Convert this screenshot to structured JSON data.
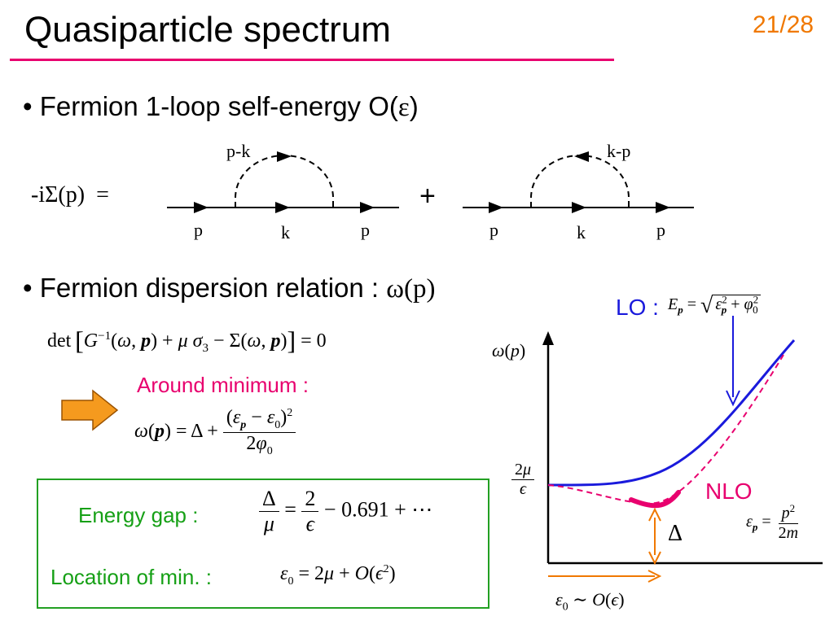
{
  "slide": {
    "title": "Quasiparticle spectrum",
    "number": "21/28"
  },
  "bullets": {
    "b1_prefix": "• Fermion 1-loop self-energy  O(",
    "b1_symbol": "ε",
    "b1_suffix": ")",
    "b2_prefix": "• Fermion dispersion relation : ",
    "b2_symbol": "ω",
    "b2_arg": "(p)"
  },
  "feynman": {
    "lhs_minus": "-",
    "lhs_i": "i",
    "lhs_sigma": "Σ",
    "lhs_arg": "(p)",
    "equals": "=",
    "plus": "+",
    "diagram1": {
      "loop_label": "p-k",
      "left_label": "p",
      "mid_label": "k",
      "right_label": "p"
    },
    "diagram2": {
      "loop_label": "k-p",
      "left_label": "p",
      "mid_label": "k",
      "right_label": "p"
    }
  },
  "equations": {
    "det_text": "det",
    "around_minimum": "Around minimum :",
    "energy_gap_label": "Energy gap :",
    "location_label": "Location of min. :",
    "gap_const": "0.691 + ⋯"
  },
  "plot": {
    "lo_label": "LO :",
    "nlo_label": "NLO",
    "delta": "Δ",
    "lo_color": "#1a1adc",
    "nlo_color": "#e8006e",
    "minimum_color": "#e8006e",
    "gap_arrow_color": "#f07800",
    "eps0_arrow_color": "#f07800"
  },
  "colors": {
    "title_rule": "#e8006e",
    "slide_number": "#f07800",
    "around_minimum": "#e8006e",
    "box_border": "#22a022",
    "box_text": "#16a016",
    "orange_arrow": "#f59a1e"
  },
  "icons": {
    "pointer": "orange-right-arrow-icon"
  }
}
